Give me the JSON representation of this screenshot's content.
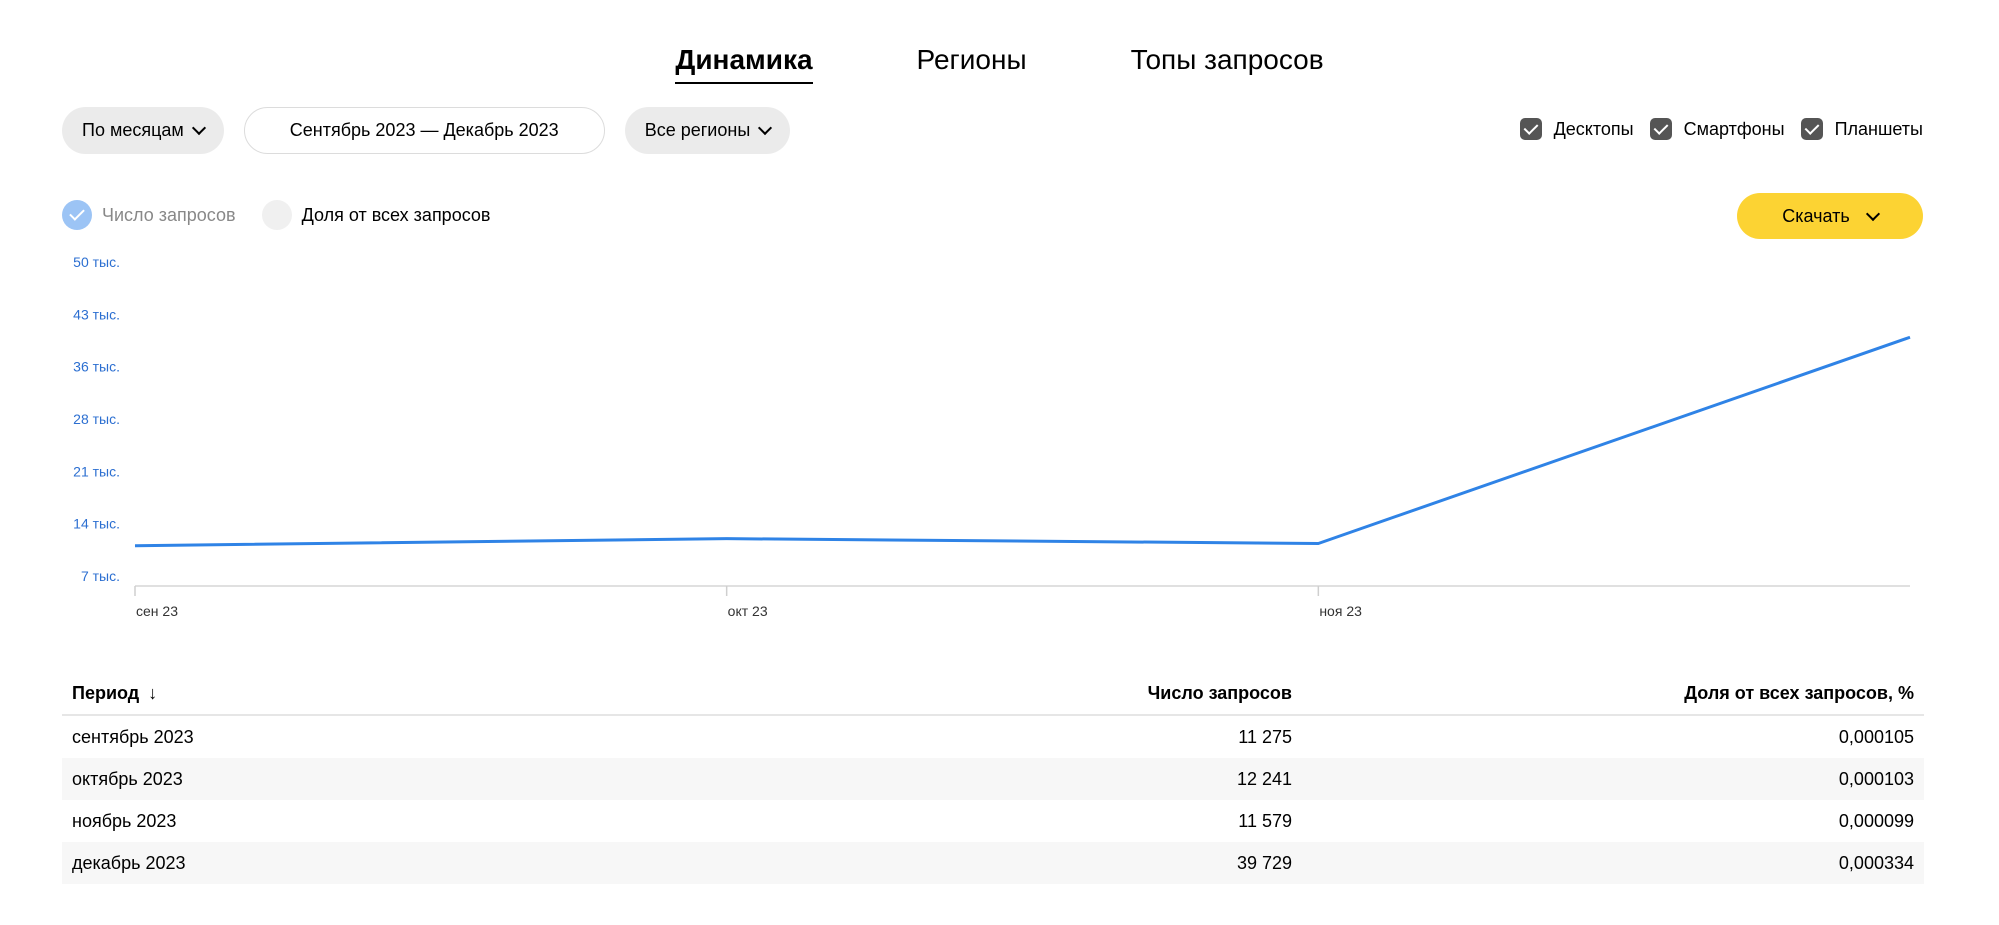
{
  "tabs": [
    {
      "label": "Динамика",
      "active": true
    },
    {
      "label": "Регионы",
      "active": false
    },
    {
      "label": "Топы запросов",
      "active": false
    }
  ],
  "filters": {
    "period_group": "По месяцам",
    "date_range": "Сентябрь 2023 — Декабрь 2023",
    "regions": "Все регионы"
  },
  "devices": [
    {
      "label": "Десктопы",
      "checked": true
    },
    {
      "label": "Смартфоны",
      "checked": true
    },
    {
      "label": "Планшеты",
      "checked": true
    }
  ],
  "metrics": [
    {
      "label": "Число запросов",
      "selected": true
    },
    {
      "label": "Доля от всех запросов",
      "selected": false
    }
  ],
  "download_label": "Скачать",
  "colors": {
    "line": "#2f83e6",
    "accent": "#fcd333",
    "ytick": "#2c6fd1"
  },
  "chart_data": {
    "type": "line",
    "categories": [
      "сен 23",
      "окт 23",
      "ноя 23",
      "дек 23"
    ],
    "x_tick_labels": [
      "сен 23",
      "окт 23",
      "ноя 23"
    ],
    "series": [
      {
        "values": [
          11275,
          12241,
          11579,
          39729
        ]
      }
    ],
    "y_tick_labels": [
      "50 тыс.",
      "43 тыс.",
      "36 тыс.",
      "28 тыс.",
      "21 тыс.",
      "14 тыс.",
      "7 тыс."
    ],
    "y_tick_values": [
      50000,
      42857,
      35714,
      28571,
      21428,
      14285,
      7142
    ],
    "ylim": [
      7142,
      50000
    ],
    "grid": false
  },
  "table": {
    "headers": [
      "Период",
      "Число запросов",
      "Доля от всех запросов, %"
    ],
    "sort_icon": "arrow-down-icon",
    "rows": [
      [
        "сентябрь 2023",
        "11 275",
        "0,000105"
      ],
      [
        "октябрь 2023",
        "12 241",
        "0,000103"
      ],
      [
        "ноябрь 2023",
        "11 579",
        "0,000099"
      ],
      [
        "декабрь 2023",
        "39 729",
        "0,000334"
      ]
    ]
  }
}
